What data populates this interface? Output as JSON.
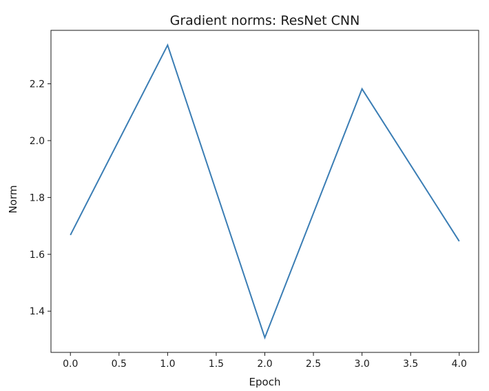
{
  "chart_data": {
    "type": "line",
    "title": "Gradient norms: ResNet CNN",
    "xlabel": "Epoch",
    "ylabel": "Norm",
    "x": [
      0,
      1,
      2,
      3,
      4
    ],
    "series": [
      {
        "values": [
          1.668,
          2.336,
          1.307,
          2.182,
          1.646
        ],
        "color": "#3a7db4"
      }
    ],
    "xlim": [
      -0.2,
      4.2
    ],
    "ylim": [
      1.255,
      2.388
    ],
    "xticks": [
      0.0,
      0.5,
      1.0,
      1.5,
      2.0,
      2.5,
      3.0,
      3.5,
      4.0
    ],
    "xtick_labels": [
      "0.0",
      "0.5",
      "1.0",
      "1.5",
      "2.0",
      "2.5",
      "3.0",
      "3.5",
      "4.0"
    ],
    "yticks": [
      1.4,
      1.6,
      1.8,
      2.0,
      2.2
    ],
    "ytick_labels": [
      "1.4",
      "1.6",
      "1.8",
      "2.0",
      "2.2"
    ],
    "grid": false,
    "legend": "none"
  }
}
